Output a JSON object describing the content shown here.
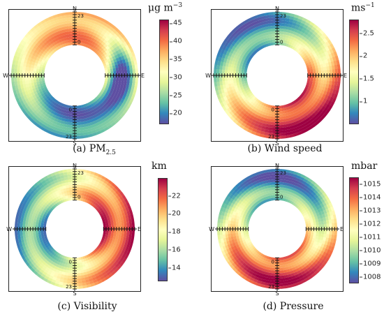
{
  "chart_data": [
    {
      "type": "heatmap",
      "caption_prefix": "(a) PM",
      "caption_sub": "2.5",
      "unit_base": "μg m",
      "unit_sup": "−3",
      "colorbar_range": [
        17,
        46
      ],
      "colorbar_ticks": [
        "45",
        "40",
        "35",
        "30",
        "25",
        "20"
      ],
      "colorbar_tick_values": [
        45,
        40,
        35,
        30,
        25,
        20
      ],
      "compass": [
        "N",
        "E",
        "S",
        "W"
      ],
      "hour_labels": [
        "23",
        "0"
      ],
      "pattern": {
        "base": 29,
        "peak_angle": 0,
        "amp": 9,
        "ring_amp": 3,
        "east_low": 12
      }
    },
    {
      "type": "heatmap",
      "caption_prefix": "(b) Wind speed",
      "caption_sub": "",
      "unit_base": "ms",
      "unit_sup": "−1",
      "colorbar_range": [
        0.5,
        2.8
      ],
      "colorbar_ticks": [
        "2.5",
        "2",
        "1.5",
        "1"
      ],
      "colorbar_tick_values": [
        2.5,
        2.0,
        1.5,
        1.0
      ],
      "compass": [
        "N",
        "E",
        "S",
        "W"
      ],
      "hour_labels": [
        "23",
        "0"
      ],
      "pattern": {
        "base": 1.7,
        "peak_angle": 150,
        "amp": 0.9,
        "ring_amp": 0.3,
        "east_low": 0
      }
    },
    {
      "type": "heatmap",
      "caption_prefix": "(c) Visibility",
      "caption_sub": "",
      "unit_base": "km",
      "unit_sup": "",
      "colorbar_range": [
        12.5,
        24
      ],
      "colorbar_ticks": [
        "22",
        "20",
        "18",
        "16",
        "14"
      ],
      "colorbar_tick_values": [
        22,
        20,
        18,
        16,
        14
      ],
      "compass": [
        "N",
        "E",
        "S",
        "W"
      ],
      "hour_labels": [
        "23",
        "0"
      ],
      "pattern": {
        "base": 18.5,
        "peak_angle": 90,
        "amp": 4,
        "ring_amp": 1.5,
        "east_low": 0
      }
    },
    {
      "type": "heatmap",
      "caption_prefix": "(d) Pressure",
      "caption_sub": "",
      "unit_base": "mbar",
      "unit_sup": "",
      "colorbar_range": [
        1007.5,
        1015.5
      ],
      "colorbar_ticks": [
        "1015",
        "1014",
        "1013",
        "1012",
        "1011",
        "1010",
        "1009",
        "1008"
      ],
      "colorbar_tick_values": [
        1015,
        1014,
        1013,
        1012,
        1011,
        1010,
        1009,
        1008
      ],
      "compass": [
        "N",
        "E",
        "S",
        "W"
      ],
      "hour_labels": [
        "23",
        "0"
      ],
      "pattern": {
        "base": 1011.5,
        "peak_angle": 180,
        "amp": 3,
        "ring_amp": 1.2,
        "east_low": 0
      }
    }
  ],
  "palette": [
    "#5e4fa2",
    "#3288bd",
    "#66c2a5",
    "#abdda4",
    "#e6f598",
    "#ffffbf",
    "#fee08b",
    "#fdae61",
    "#f46d43",
    "#d53e4f",
    "#9e0142"
  ]
}
